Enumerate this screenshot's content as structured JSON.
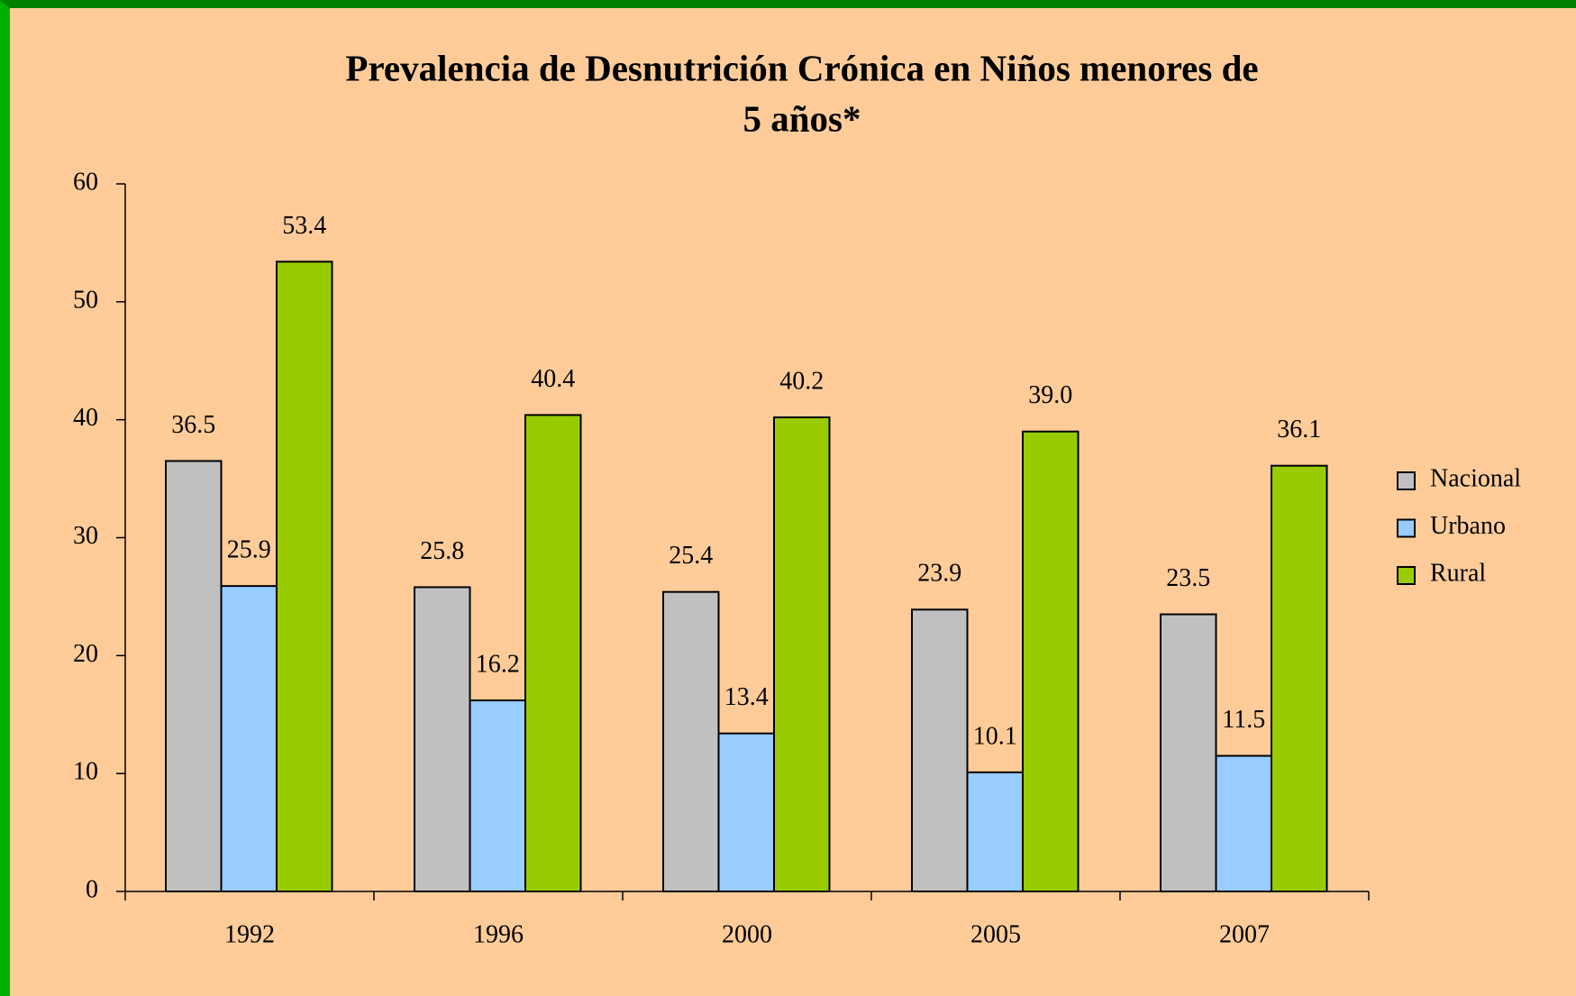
{
  "chart_data": {
    "type": "bar",
    "title": [
      "Prevalencia de Desnutrición Crónica en Niños menores de",
      "5 años*"
    ],
    "categories": [
      "1992",
      "1996",
      "2000",
      "2005",
      "2007"
    ],
    "series": [
      {
        "name": "Nacional",
        "color": "#c0c0c0",
        "values": [
          36.5,
          25.8,
          25.4,
          23.9,
          23.5
        ],
        "value_labels": [
          "36.5",
          "25.8",
          "25.4",
          "23.9",
          "23.5"
        ]
      },
      {
        "name": "Urbano",
        "color": "#99ccff",
        "values": [
          25.9,
          16.2,
          13.4,
          10.1,
          11.5
        ],
        "value_labels": [
          "25.9",
          "16.2",
          "13.4",
          "10.1",
          "11.5"
        ]
      },
      {
        "name": "Rural",
        "color": "#99cc00",
        "values": [
          53.4,
          40.4,
          40.2,
          39.0,
          36.1
        ],
        "value_labels": [
          "53.4",
          "40.4",
          "40.2",
          "39.0",
          "36.1"
        ]
      }
    ],
    "ylim": [
      0,
      60
    ],
    "yticks": [
      0,
      10,
      20,
      30,
      40,
      50,
      60
    ],
    "legend": "right"
  }
}
